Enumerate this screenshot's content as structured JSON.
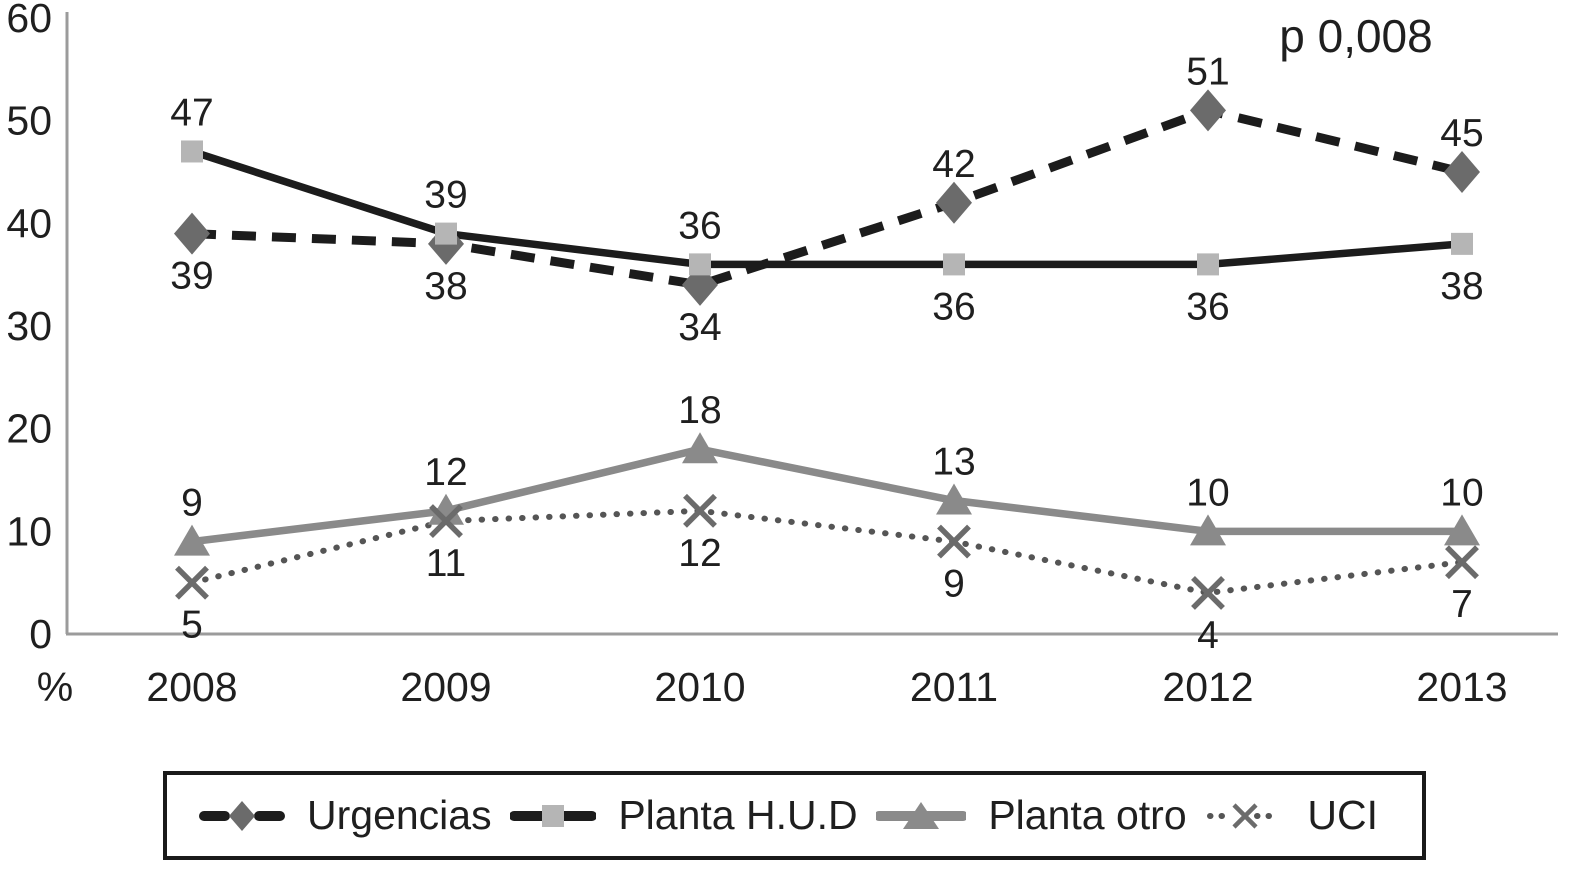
{
  "figure": {
    "annotation": "p 0,008",
    "y_axis_unit": "%"
  },
  "chart_data": {
    "type": "line",
    "title": "",
    "xlabel": "",
    "ylabel": "%",
    "ylim": [
      0,
      60
    ],
    "yticks": [
      0,
      10,
      20,
      30,
      40,
      50,
      60
    ],
    "categories": [
      "2008",
      "2009",
      "2010",
      "2011",
      "2012",
      "2013"
    ],
    "annotation": "p 0,008",
    "grid": false,
    "legend_position": "bottom",
    "axis_color": "#9b9b9b",
    "text_color": "#1f1f1f",
    "series": [
      {
        "name": "Urgencias",
        "values": [
          39,
          38,
          34,
          42,
          51,
          45
        ],
        "line_style": "dashed",
        "line_color": "#1c1c1c",
        "marker": "diamond",
        "marker_color": "#6b6b6b",
        "label_side": [
          "below",
          "below",
          "below",
          "above",
          "above",
          "above"
        ]
      },
      {
        "name": "Planta H.U.D",
        "values": [
          47,
          39,
          36,
          36,
          36,
          38
        ],
        "line_style": "solid",
        "line_color": "#1c1c1c",
        "marker": "square",
        "marker_color": "#b5b5b5",
        "label_side": [
          "above",
          "above",
          "above",
          "below",
          "below",
          "below"
        ]
      },
      {
        "name": "Planta otro",
        "values": [
          9,
          12,
          18,
          13,
          10,
          10
        ],
        "line_style": "solid",
        "line_color": "#8a8a8a",
        "marker": "triangle",
        "marker_color": "#8a8a8a",
        "label_side": [
          "above",
          "above",
          "above",
          "above",
          "above",
          "above"
        ]
      },
      {
        "name": "UCI",
        "values": [
          5,
          11,
          12,
          9,
          4,
          7
        ],
        "line_style": "dotted",
        "line_color": "#555555",
        "marker": "x",
        "marker_color": "#6b6b6b",
        "label_side": [
          "below",
          "below",
          "below",
          "below",
          "below",
          "below"
        ]
      }
    ]
  }
}
